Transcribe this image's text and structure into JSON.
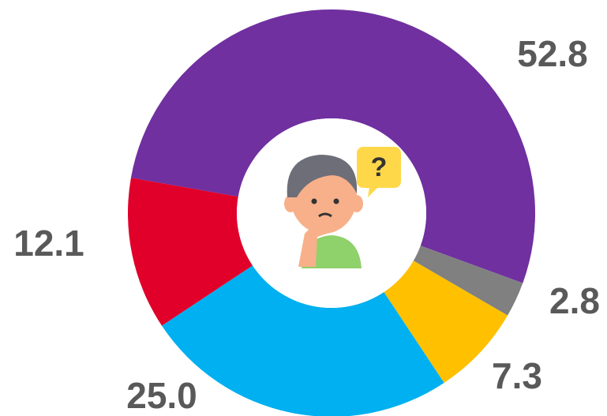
{
  "chart_data": {
    "type": "donut",
    "categories": [
      null,
      null,
      null,
      null,
      null
    ],
    "values": [
      52.8,
      2.8,
      7.3,
      25.0,
      12.1
    ],
    "value_labels": [
      "52.8",
      "2.8",
      "7.3",
      "25.0",
      "12.1"
    ],
    "colors": [
      "#7030a0",
      "#808080",
      "#ffc000",
      "#00b0f0",
      "#e0002a"
    ]
  }
}
